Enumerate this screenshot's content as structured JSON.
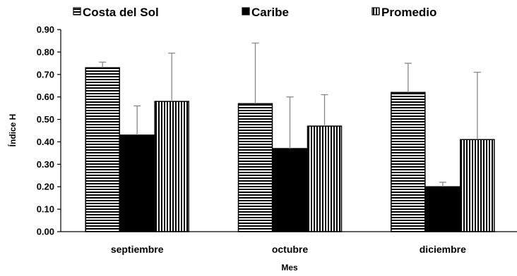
{
  "chart_data": {
    "type": "bar",
    "categories": [
      "septiembre",
      "octubre",
      "diciembre"
    ],
    "series": [
      {
        "name": "Costa del Sol",
        "pattern": "horizontal-stripes",
        "values": [
          0.73,
          0.57,
          0.62
        ],
        "error_plus": [
          0.025,
          0.27,
          0.13
        ]
      },
      {
        "name": "Caribe",
        "pattern": "solid-black",
        "values": [
          0.43,
          0.37,
          0.2
        ],
        "error_plus": [
          0.13,
          0.23,
          0.02
        ]
      },
      {
        "name": "Promedio",
        "pattern": "vertical-stripes",
        "values": [
          0.58,
          0.47,
          0.41
        ],
        "error_plus": [
          0.215,
          0.14,
          0.3
        ]
      }
    ],
    "ylim": [
      0,
      0.9
    ],
    "yticks": [
      "0.00",
      "0.10",
      "0.20",
      "0.30",
      "0.40",
      "0.50",
      "0.60",
      "0.70",
      "0.80",
      "0.90"
    ],
    "xlabel": "Mes",
    "ylabel": "Índice H",
    "legend_position": "top",
    "grid": false,
    "bar_edge_color": "#000000",
    "error_bar_color": "#888888"
  }
}
